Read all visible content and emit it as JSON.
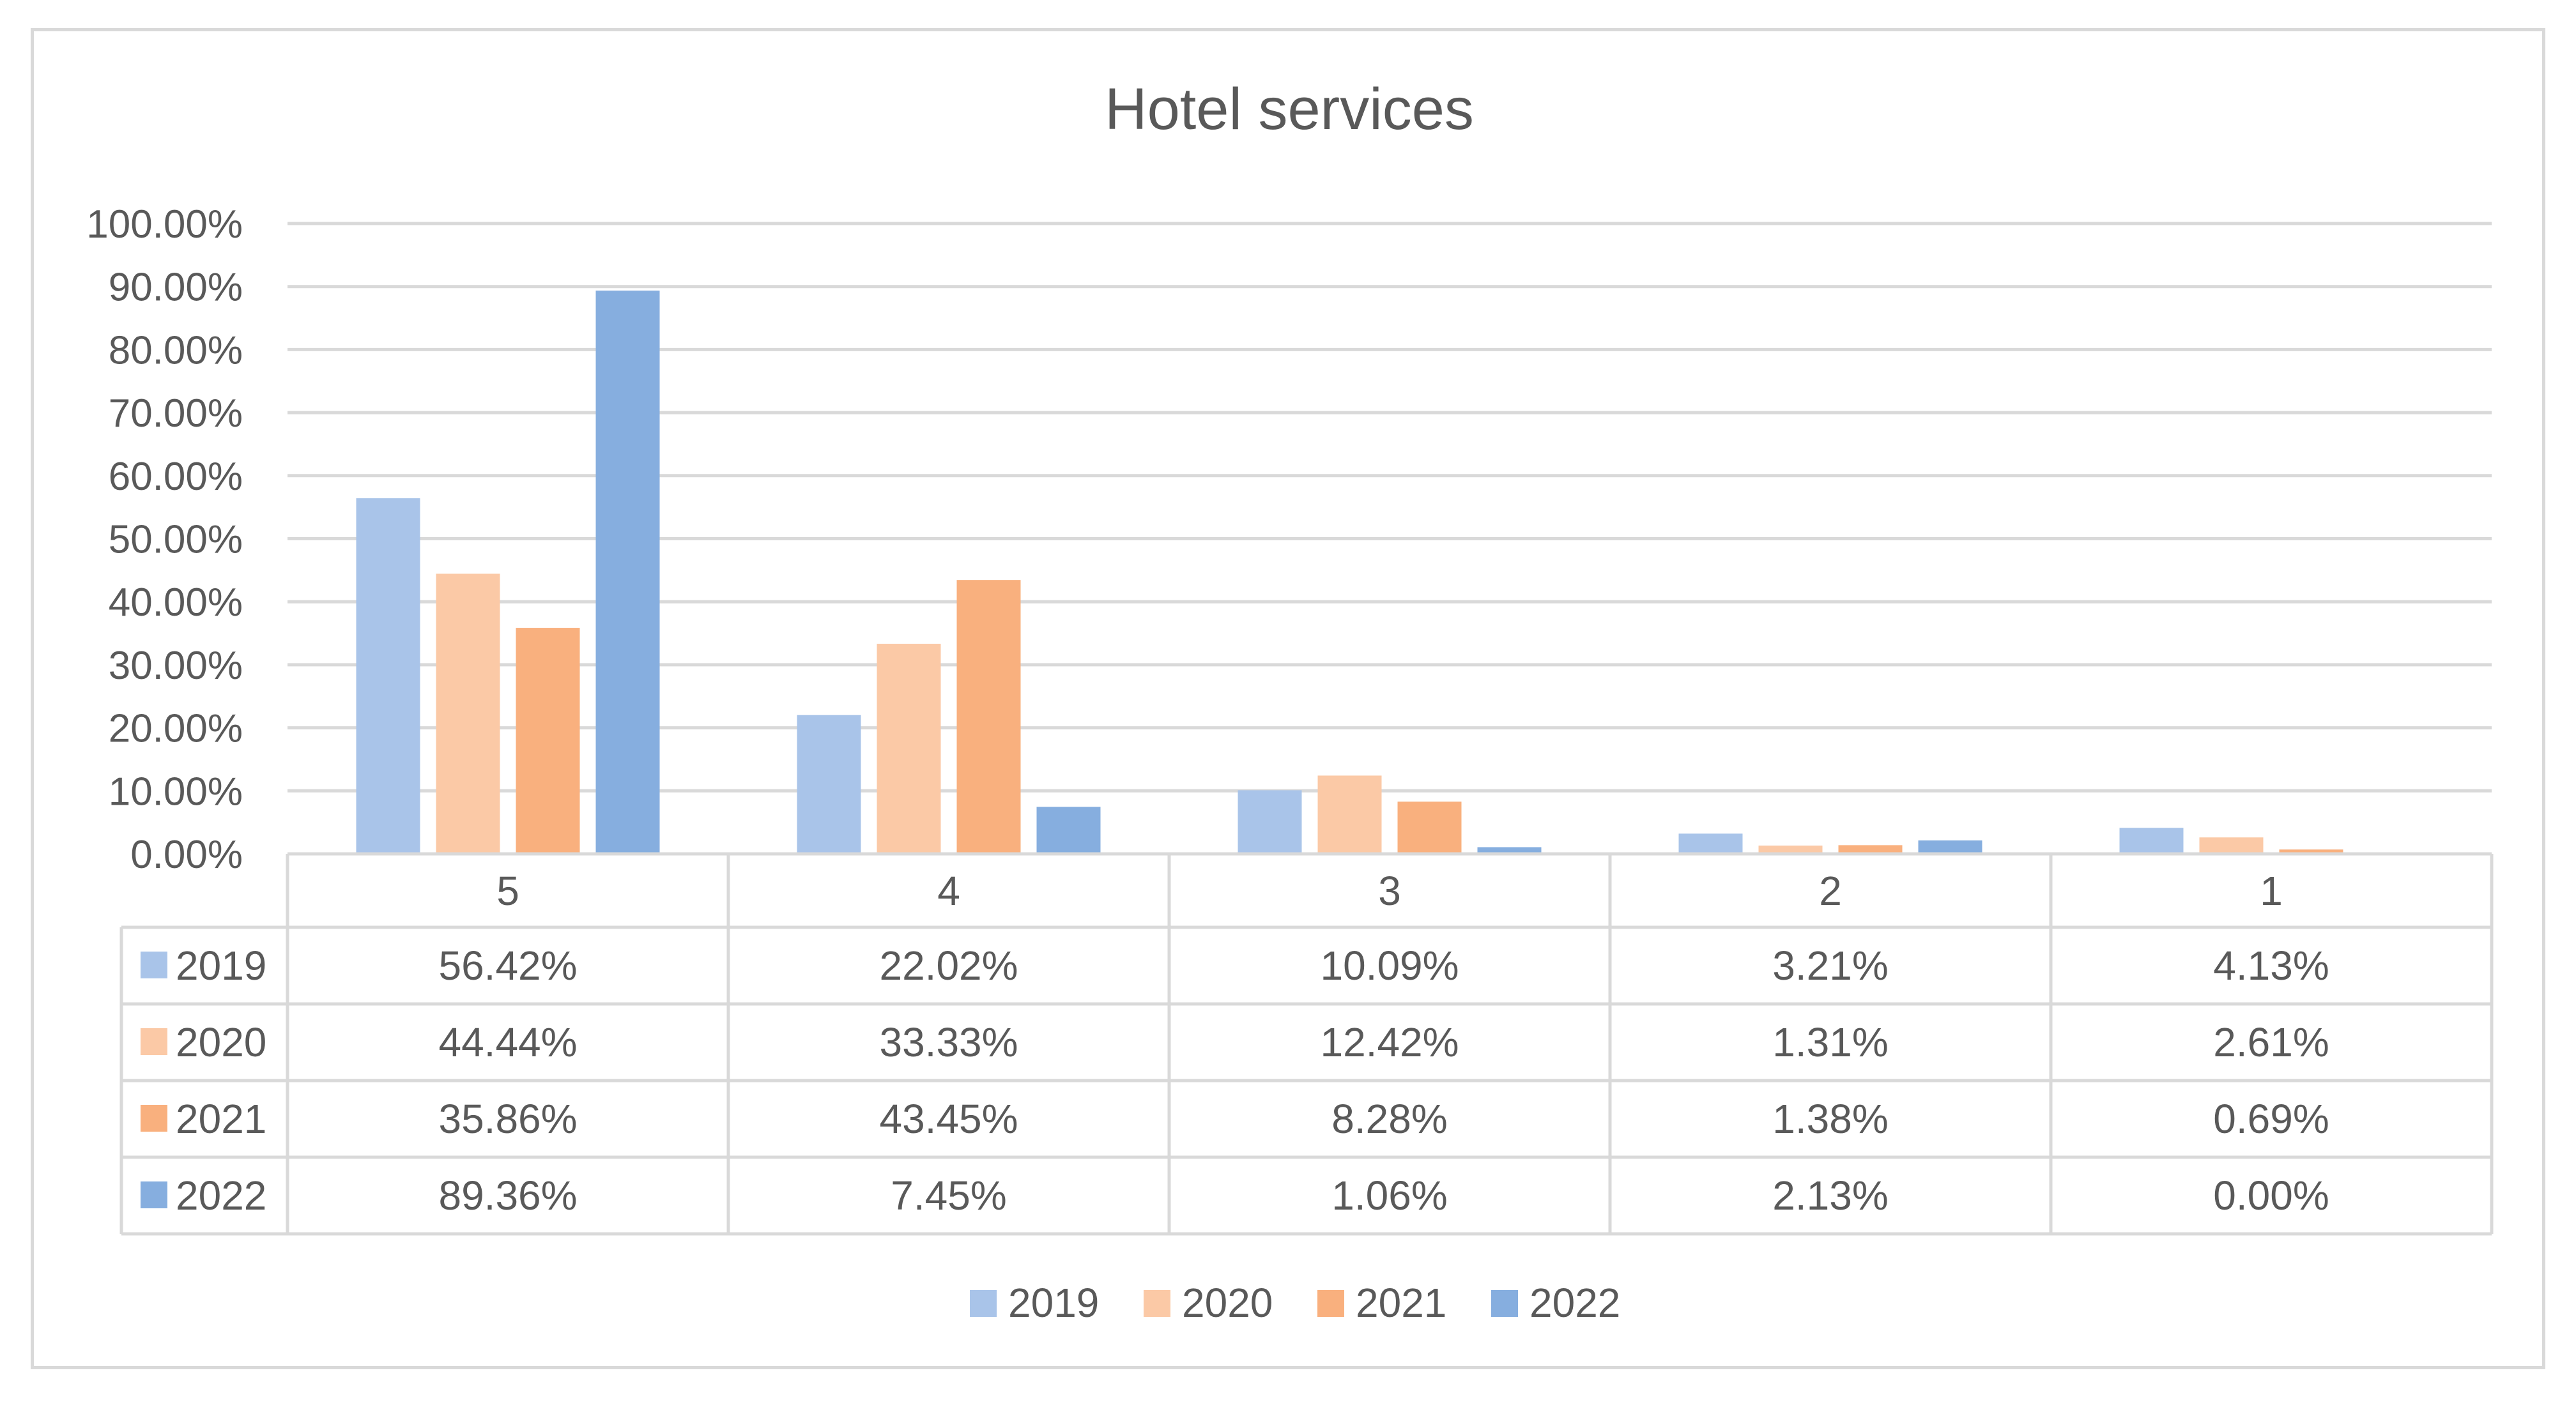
{
  "chart_data": {
    "type": "bar",
    "title": "Hotel services",
    "xlabel": "",
    "ylabel": "",
    "ylim": [
      0,
      1
    ],
    "yticks": [
      "0.00%",
      "10.00%",
      "20.00%",
      "30.00%",
      "40.00%",
      "50.00%",
      "60.00%",
      "70.00%",
      "80.00%",
      "90.00%",
      "100.00%"
    ],
    "categories": [
      "5",
      "4",
      "3",
      "2",
      "1"
    ],
    "grid": true,
    "legend_position": "bottom",
    "has_data_table": true,
    "series": [
      {
        "name": "2019",
        "color": "#a9c4e9",
        "values": [
          0.5642,
          0.2202,
          0.1009,
          0.0321,
          0.0413
        ],
        "labels": [
          "56.42%",
          "22.02%",
          "10.09%",
          "3.21%",
          "4.13%"
        ]
      },
      {
        "name": "2020",
        "color": "#fbc9a6",
        "values": [
          0.4444,
          0.3333,
          0.1242,
          0.0131,
          0.0261
        ],
        "labels": [
          "44.44%",
          "33.33%",
          "12.42%",
          "1.31%",
          "2.61%"
        ]
      },
      {
        "name": "2021",
        "color": "#f9b07e",
        "values": [
          0.3586,
          0.4345,
          0.0828,
          0.0138,
          0.0069
        ],
        "labels": [
          "35.86%",
          "43.45%",
          "8.28%",
          "1.38%",
          "0.69%"
        ]
      },
      {
        "name": "2022",
        "color": "#86aedf",
        "values": [
          0.8936,
          0.0745,
          0.0106,
          0.0213,
          0.0
        ],
        "labels": [
          "89.36%",
          "7.45%",
          "1.06%",
          "2.13%",
          "0.00%"
        ]
      }
    ]
  }
}
